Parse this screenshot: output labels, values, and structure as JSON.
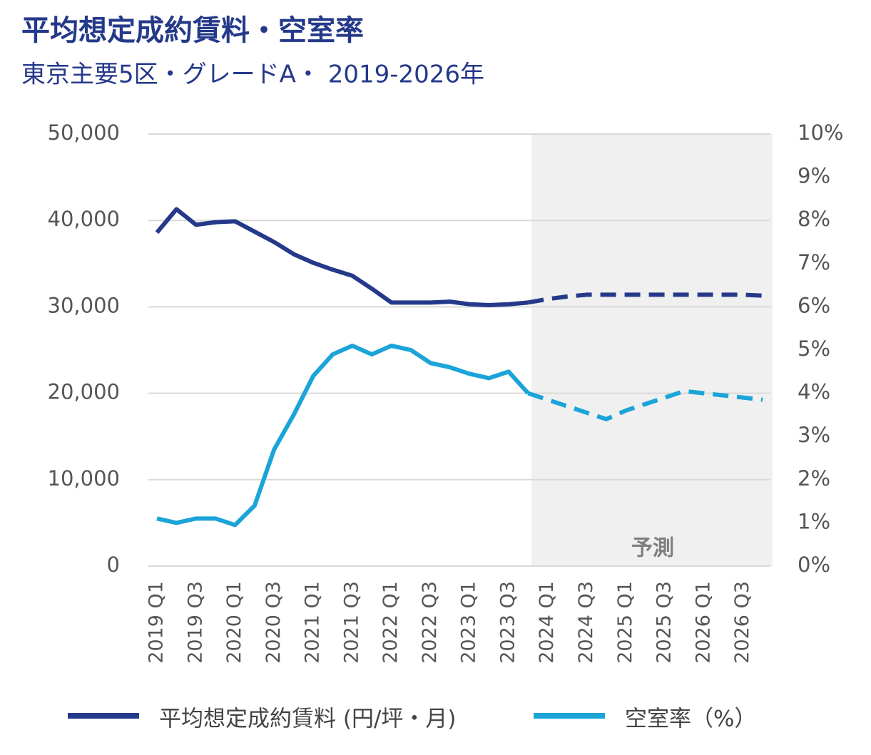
{
  "chart_data": {
    "type": "line",
    "title": "平均想定成約賃料・空室率",
    "subtitle": "東京主要5区・グレードA・ 2019-2026年",
    "categories": [
      "2019 Q1",
      null,
      "2019 Q3",
      null,
      "2020 Q1",
      null,
      "2020 Q3",
      null,
      "2021 Q1",
      null,
      "2021 Q3",
      null,
      "2022 Q1",
      null,
      "2022 Q3",
      null,
      "2023 Q1",
      null,
      "2023 Q3",
      null,
      "2024 Q1",
      null,
      "2024 Q3",
      null,
      "2025 Q1",
      null,
      "2025 Q3",
      null,
      "2026 Q1",
      null,
      "2026 Q3",
      null
    ],
    "series": [
      {
        "name": "平均想定成約賃料 (円/坪・月)",
        "color": "#25398a",
        "axis": "y",
        "values": [
          38600,
          41300,
          39500,
          39800,
          39900,
          38700,
          37500,
          36100,
          35100,
          34300,
          33600,
          32100,
          30500,
          30500,
          30500,
          30600,
          30300,
          30200,
          30300,
          30500,
          30900,
          31200,
          31400,
          31400,
          31400,
          31400,
          31400,
          31400,
          31400,
          31400,
          31400,
          31300
        ]
      },
      {
        "name": "空室率（%）",
        "color": "#1ba4d8",
        "axis": "y2",
        "values": [
          1.1,
          1.0,
          1.1,
          1.1,
          0.95,
          1.4,
          2.7,
          3.5,
          4.4,
          4.9,
          5.1,
          4.9,
          5.1,
          5.0,
          4.7,
          4.6,
          4.45,
          4.35,
          4.5,
          4.0,
          3.85,
          3.7,
          3.55,
          3.4,
          3.6,
          3.75,
          3.9,
          4.05,
          4.0,
          3.95,
          3.9,
          3.85
        ]
      }
    ],
    "ylim": [
      0,
      50000
    ],
    "yticks": [
      0,
      {
        "value": 10000,
        "label": "10,000"
      },
      {
        "value": 20000,
        "label": "20,000"
      },
      {
        "value": 30000,
        "label": "30,000"
      },
      {
        "value": 40000,
        "label": "40,000"
      },
      {
        "value": 50000,
        "label": "50,000"
      }
    ],
    "y2lim": [
      0,
      10
    ],
    "y2ticks": [
      {
        "value": 0,
        "label": "0%"
      },
      {
        "value": 1,
        "label": "1%"
      },
      {
        "value": 2,
        "label": "2%"
      },
      {
        "value": 3,
        "label": "3%"
      },
      {
        "value": 4,
        "label": "4%"
      },
      {
        "value": 5,
        "label": "5%"
      },
      {
        "value": 6,
        "label": "6%"
      },
      {
        "value": 7,
        "label": "7%"
      },
      {
        "value": 8,
        "label": "8%"
      },
      {
        "value": 9,
        "label": "9%"
      },
      {
        "value": 10,
        "label": "10%"
      }
    ],
    "grid": true,
    "forecast": {
      "label": "予測",
      "from_index": 19,
      "shade": "#f0f0f0"
    },
    "legend": "bottom"
  }
}
